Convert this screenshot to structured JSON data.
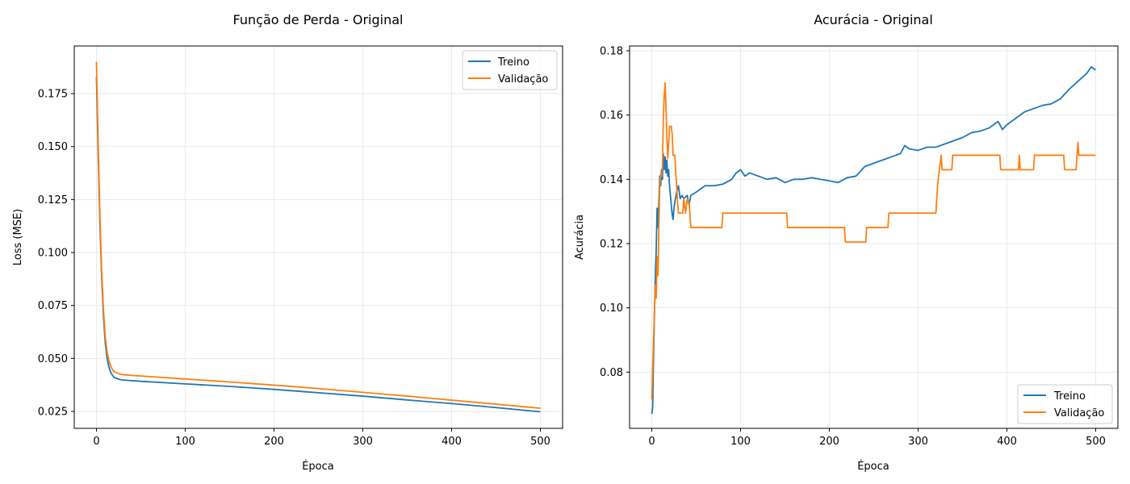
{
  "chart_data": [
    {
      "type": "line",
      "title": "Função de Perda - Original",
      "xlabel": "Época",
      "ylabel": "Loss (MSE)",
      "xlim": [
        -25,
        525
      ],
      "ylim": [
        0.017,
        0.1975
      ],
      "xticks": [
        0,
        100,
        200,
        300,
        400,
        500
      ],
      "xtick_labels": [
        "0",
        "100",
        "200",
        "300",
        "400",
        "500"
      ],
      "yticks": [
        0.025,
        0.05,
        0.075,
        0.1,
        0.125,
        0.15,
        0.175
      ],
      "ytick_labels": [
        "0.025",
        "0.050",
        "0.075",
        "0.100",
        "0.125",
        "0.150",
        "0.175"
      ],
      "grid": true,
      "legend_position": "top-right",
      "series": [
        {
          "name": "Treino",
          "color": "#1f77b4",
          "points": [
            [
              0,
              0.183
            ],
            [
              2,
              0.145
            ],
            [
              4,
              0.112
            ],
            [
              6,
              0.087
            ],
            [
              8,
              0.069
            ],
            [
              10,
              0.057
            ],
            [
              12,
              0.05
            ],
            [
              14,
              0.046
            ],
            [
              16,
              0.0435
            ],
            [
              18,
              0.042
            ],
            [
              20,
              0.041
            ],
            [
              25,
              0.0402
            ],
            [
              30,
              0.0398
            ],
            [
              50,
              0.0392
            ],
            [
              100,
              0.038
            ],
            [
              150,
              0.0368
            ],
            [
              200,
              0.0354
            ],
            [
              250,
              0.0338
            ],
            [
              300,
              0.0322
            ],
            [
              350,
              0.0304
            ],
            [
              400,
              0.0287
            ],
            [
              450,
              0.0268
            ],
            [
              500,
              0.0248
            ]
          ]
        },
        {
          "name": "Validação",
          "color": "#ff7f0e",
          "points": [
            [
              0,
              0.19
            ],
            [
              2,
              0.15
            ],
            [
              4,
              0.116
            ],
            [
              6,
              0.09
            ],
            [
              8,
              0.072
            ],
            [
              10,
              0.06
            ],
            [
              12,
              0.053
            ],
            [
              14,
              0.049
            ],
            [
              16,
              0.0465
            ],
            [
              18,
              0.0448
            ],
            [
              20,
              0.0438
            ],
            [
              25,
              0.0428
            ],
            [
              30,
              0.0423
            ],
            [
              50,
              0.0417
            ],
            [
              100,
              0.0403
            ],
            [
              150,
              0.0389
            ],
            [
              200,
              0.0374
            ],
            [
              250,
              0.0358
            ],
            [
              300,
              0.034
            ],
            [
              350,
              0.0322
            ],
            [
              400,
              0.0303
            ],
            [
              450,
              0.0284
            ],
            [
              500,
              0.0265
            ]
          ]
        }
      ]
    },
    {
      "type": "line",
      "title": "Acurácia - Original",
      "xlabel": "Época",
      "ylabel": "Acurácia",
      "xlim": [
        -25,
        525
      ],
      "ylim": [
        0.0625,
        0.1815
      ],
      "xticks": [
        0,
        100,
        200,
        300,
        400,
        500
      ],
      "xtick_labels": [
        "0",
        "100",
        "200",
        "300",
        "400",
        "500"
      ],
      "yticks": [
        0.08,
        0.1,
        0.12,
        0.14,
        0.16,
        0.18
      ],
      "ytick_labels": [
        "0.08",
        "0.10",
        "0.12",
        "0.14",
        "0.16",
        "0.18"
      ],
      "grid": true,
      "legend_position": "bottom-right",
      "series": [
        {
          "name": "Treino",
          "color": "#1f77b4",
          "points": [
            [
              0,
              0.067
            ],
            [
              1,
              0.069
            ],
            [
              2,
              0.085
            ],
            [
              3,
              0.098
            ],
            [
              4,
              0.11
            ],
            [
              5,
              0.118
            ],
            [
              6,
              0.131
            ],
            [
              7,
              0.125
            ],
            [
              8,
              0.133
            ],
            [
              9,
              0.141
            ],
            [
              10,
              0.138
            ],
            [
              11,
              0.143
            ],
            [
              12,
              0.14
            ],
            [
              13,
              0.148
            ],
            [
              14,
              0.143
            ],
            [
              15,
              0.147
            ],
            [
              16,
              0.142
            ],
            [
              17,
              0.146
            ],
            [
              18,
              0.141
            ],
            [
              19,
              0.143
            ],
            [
              20,
              0.138
            ],
            [
              21,
              0.135
            ],
            [
              22,
              0.132
            ],
            [
              23,
              0.129
            ],
            [
              24,
              0.1275
            ],
            [
              25,
              0.131
            ],
            [
              26,
              0.133
            ],
            [
              28,
              0.136
            ],
            [
              30,
              0.138
            ],
            [
              32,
              0.134
            ],
            [
              34,
              0.135
            ],
            [
              36,
              0.134
            ],
            [
              40,
              0.135
            ],
            [
              42,
              0.132
            ],
            [
              44,
              0.135
            ],
            [
              50,
              0.136
            ],
            [
              55,
              0.137
            ],
            [
              60,
              0.138
            ],
            [
              70,
              0.138
            ],
            [
              80,
              0.1385
            ],
            [
              90,
              0.14
            ],
            [
              95,
              0.142
            ],
            [
              100,
              0.143
            ],
            [
              105,
              0.141
            ],
            [
              110,
              0.142
            ],
            [
              120,
              0.141
            ],
            [
              130,
              0.14
            ],
            [
              140,
              0.1405
            ],
            [
              150,
              0.139
            ],
            [
              160,
              0.14
            ],
            [
              170,
              0.14
            ],
            [
              180,
              0.1405
            ],
            [
              190,
              0.14
            ],
            [
              200,
              0.1395
            ],
            [
              210,
              0.139
            ],
            [
              220,
              0.1405
            ],
            [
              230,
              0.141
            ],
            [
              240,
              0.144
            ],
            [
              250,
              0.145
            ],
            [
              260,
              0.146
            ],
            [
              270,
              0.147
            ],
            [
              280,
              0.148
            ],
            [
              285,
              0.1505
            ],
            [
              290,
              0.1495
            ],
            [
              300,
              0.149
            ],
            [
              310,
              0.15
            ],
            [
              320,
              0.15
            ],
            [
              330,
              0.151
            ],
            [
              340,
              0.152
            ],
            [
              350,
              0.153
            ],
            [
              360,
              0.1545
            ],
            [
              370,
              0.155
            ],
            [
              380,
              0.156
            ],
            [
              390,
              0.158
            ],
            [
              395,
              0.1555
            ],
            [
              400,
              0.157
            ],
            [
              410,
              0.159
            ],
            [
              420,
              0.161
            ],
            [
              430,
              0.162
            ],
            [
              440,
              0.163
            ],
            [
              450,
              0.1635
            ],
            [
              460,
              0.165
            ],
            [
              470,
              0.168
            ],
            [
              480,
              0.1705
            ],
            [
              490,
              0.173
            ],
            [
              495,
              0.175
            ],
            [
              500,
              0.174
            ]
          ]
        },
        {
          "name": "Validação",
          "color": "#ff7f0e",
          "points": [
            [
              0,
              0.0715
            ],
            [
              1,
              0.081
            ],
            [
              2,
              0.09
            ],
            [
              3,
              0.099
            ],
            [
              4,
              0.107
            ],
            [
              5,
              0.103
            ],
            [
              6,
              0.116
            ],
            [
              7,
              0.11
            ],
            [
              8,
              0.125
            ],
            [
              9,
              0.1385
            ],
            [
              10,
              0.1415
            ],
            [
              11,
              0.141
            ],
            [
              12,
              0.143
            ],
            [
              13,
              0.159
            ],
            [
              14,
              0.166
            ],
            [
              15,
              0.17
            ],
            [
              16,
              0.1625
            ],
            [
              17,
              0.153
            ],
            [
              18,
              0.1465
            ],
            [
              19,
              0.151
            ],
            [
              20,
              0.1565
            ],
            [
              21,
              0.1565
            ],
            [
              22,
              0.1565
            ],
            [
              23,
              0.154
            ],
            [
              24,
              0.1475
            ],
            [
              25,
              0.1475
            ],
            [
              26,
              0.1475
            ],
            [
              27,
              0.142
            ],
            [
              28,
              0.138
            ],
            [
              29,
              0.133
            ],
            [
              30,
              0.1295
            ],
            [
              35,
              0.1295
            ],
            [
              36,
              0.134
            ],
            [
              38,
              0.1295
            ],
            [
              40,
              0.134
            ],
            [
              42,
              0.133
            ],
            [
              44,
              0.125
            ],
            [
              50,
              0.125
            ],
            [
              60,
              0.125
            ],
            [
              70,
              0.125
            ],
            [
              79,
              0.125
            ],
            [
              80,
              0.1295
            ],
            [
              100,
              0.1295
            ],
            [
              120,
              0.1295
            ],
            [
              140,
              0.1295
            ],
            [
              152,
              0.1295
            ],
            [
              153,
              0.125
            ],
            [
              180,
              0.125
            ],
            [
              200,
              0.125
            ],
            [
              217,
              0.125
            ],
            [
              218,
              0.1205
            ],
            [
              230,
              0.1205
            ],
            [
              241,
              0.1205
            ],
            [
              242,
              0.125
            ],
            [
              266,
              0.125
            ],
            [
              267,
              0.1295
            ],
            [
              300,
              0.1295
            ],
            [
              320,
              0.1295
            ],
            [
              322,
              0.1385
            ],
            [
              324,
              0.143
            ],
            [
              326,
              0.1475
            ],
            [
              327,
              0.143
            ],
            [
              330,
              0.143
            ],
            [
              338,
              0.143
            ],
            [
              339,
              0.1475
            ],
            [
              360,
              0.1475
            ],
            [
              380,
              0.1475
            ],
            [
              392,
              0.1475
            ],
            [
              393,
              0.143
            ],
            [
              413,
              0.143
            ],
            [
              414,
              0.1475
            ],
            [
              415,
              0.143
            ],
            [
              430,
              0.143
            ],
            [
              431,
              0.1475
            ],
            [
              450,
              0.1475
            ],
            [
              464,
              0.1475
            ],
            [
              465,
              0.143
            ],
            [
              478,
              0.143
            ],
            [
              479,
              0.1475
            ],
            [
              480,
              0.1515
            ],
            [
              481,
              0.1475
            ],
            [
              490,
              0.1475
            ],
            [
              500,
              0.1475
            ]
          ]
        }
      ]
    }
  ]
}
